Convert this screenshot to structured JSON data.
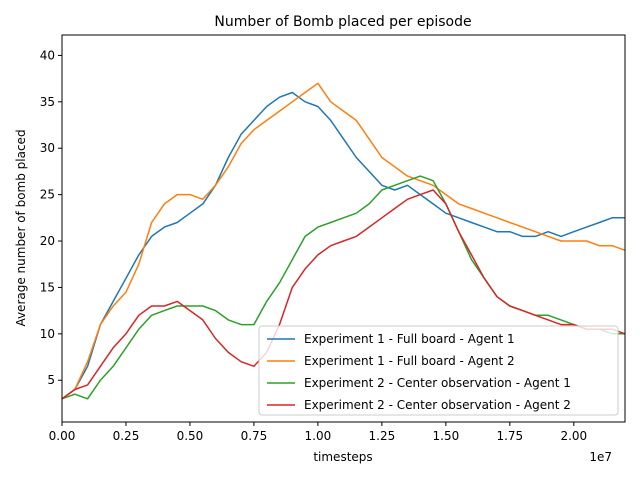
{
  "chart_data": {
    "type": "line",
    "title": "Number of Bomb placed per episode",
    "xlabel": "timesteps",
    "ylabel": "Average number of bomb placed",
    "x_offset_label": "1e7",
    "xlim": [
      0,
      2.2
    ],
    "ylim": [
      0.5,
      42.2
    ],
    "x_ticks": [
      0.0,
      0.25,
      0.5,
      0.75,
      1.0,
      1.25,
      1.5,
      1.75,
      2.0
    ],
    "x_tick_labels": [
      "0.00",
      "0.25",
      "0.50",
      "0.75",
      "1.00",
      "1.25",
      "1.50",
      "1.75",
      "2.00"
    ],
    "y_ticks": [
      5,
      10,
      15,
      20,
      25,
      30,
      35,
      40
    ],
    "y_tick_labels": [
      "5",
      "10",
      "15",
      "20",
      "25",
      "30",
      "35",
      "40"
    ],
    "grid": false,
    "legend_position": "lower-right",
    "series": [
      {
        "name": "Experiment 1 - Full board - Agent 1",
        "color": "#1f77b4",
        "x": [
          0.0,
          0.05,
          0.1,
          0.15,
          0.2,
          0.25,
          0.3,
          0.35,
          0.4,
          0.45,
          0.5,
          0.55,
          0.6,
          0.65,
          0.7,
          0.75,
          0.8,
          0.85,
          0.9,
          0.95,
          1.0,
          1.05,
          1.1,
          1.15,
          1.2,
          1.25,
          1.3,
          1.35,
          1.4,
          1.45,
          1.5,
          1.55,
          1.6,
          1.65,
          1.7,
          1.75,
          1.8,
          1.85,
          1.9,
          1.95,
          2.0,
          2.05,
          2.1,
          2.15,
          2.2
        ],
        "y": [
          3.0,
          4.0,
          6.5,
          11.0,
          13.5,
          16.0,
          18.5,
          20.5,
          21.5,
          22.0,
          23.0,
          24.0,
          26.0,
          29.0,
          31.5,
          33.0,
          34.5,
          35.5,
          36.0,
          35.0,
          34.5,
          33.0,
          31.0,
          29.0,
          27.5,
          26.0,
          25.5,
          26.0,
          25.0,
          24.0,
          23.0,
          22.5,
          22.0,
          21.5,
          21.0,
          21.0,
          20.5,
          20.5,
          21.0,
          20.5,
          21.0,
          21.5,
          22.0,
          22.5,
          22.5
        ]
      },
      {
        "name": "Experiment 1 - Full board - Agent 2",
        "color": "#ff7f0e",
        "x": [
          0.0,
          0.05,
          0.1,
          0.15,
          0.2,
          0.25,
          0.3,
          0.35,
          0.4,
          0.45,
          0.5,
          0.55,
          0.6,
          0.65,
          0.7,
          0.75,
          0.8,
          0.85,
          0.9,
          0.95,
          1.0,
          1.05,
          1.1,
          1.15,
          1.2,
          1.25,
          1.3,
          1.35,
          1.4,
          1.45,
          1.5,
          1.55,
          1.6,
          1.65,
          1.7,
          1.75,
          1.8,
          1.85,
          1.9,
          1.95,
          2.0,
          2.05,
          2.1,
          2.15,
          2.2
        ],
        "y": [
          3.0,
          4.0,
          7.0,
          11.0,
          13.0,
          14.5,
          17.5,
          22.0,
          24.0,
          25.0,
          25.0,
          24.5,
          26.0,
          28.0,
          30.5,
          32.0,
          33.0,
          34.0,
          35.0,
          36.0,
          37.0,
          35.0,
          34.0,
          33.0,
          31.0,
          29.0,
          28.0,
          27.0,
          26.5,
          26.0,
          25.0,
          24.0,
          23.5,
          23.0,
          22.5,
          22.0,
          21.5,
          21.0,
          20.5,
          20.0,
          20.0,
          20.0,
          19.5,
          19.5,
          19.0
        ]
      },
      {
        "name": "Experiment 2 - Center observation - Agent 1",
        "color": "#2ca02c",
        "x": [
          0.0,
          0.05,
          0.1,
          0.15,
          0.2,
          0.25,
          0.3,
          0.35,
          0.4,
          0.45,
          0.5,
          0.55,
          0.6,
          0.65,
          0.7,
          0.75,
          0.8,
          0.85,
          0.9,
          0.95,
          1.0,
          1.05,
          1.1,
          1.15,
          1.2,
          1.25,
          1.3,
          1.35,
          1.4,
          1.45,
          1.5,
          1.55,
          1.6,
          1.65,
          1.7,
          1.75,
          1.8,
          1.85,
          1.9,
          1.95,
          2.0,
          2.05,
          2.1,
          2.15,
          2.2
        ],
        "y": [
          3.0,
          3.5,
          3.0,
          5.0,
          6.5,
          8.5,
          10.5,
          12.0,
          12.5,
          13.0,
          13.0,
          13.0,
          12.5,
          11.5,
          11.0,
          11.0,
          13.5,
          15.5,
          18.0,
          20.5,
          21.5,
          22.0,
          22.5,
          23.0,
          24.0,
          25.5,
          26.0,
          26.5,
          27.0,
          26.5,
          24.0,
          21.0,
          18.0,
          16.0,
          14.0,
          13.0,
          12.5,
          12.0,
          12.0,
          11.5,
          11.0,
          10.5,
          10.5,
          10.0,
          10.0
        ]
      },
      {
        "name": "Experiment 2 - Center observation - Agent 2",
        "color": "#d62728",
        "x": [
          0.0,
          0.05,
          0.1,
          0.15,
          0.2,
          0.25,
          0.3,
          0.35,
          0.4,
          0.45,
          0.5,
          0.55,
          0.6,
          0.65,
          0.7,
          0.75,
          0.8,
          0.85,
          0.9,
          0.95,
          1.0,
          1.05,
          1.1,
          1.15,
          1.2,
          1.25,
          1.3,
          1.35,
          1.4,
          1.45,
          1.5,
          1.55,
          1.6,
          1.65,
          1.7,
          1.75,
          1.8,
          1.85,
          1.9,
          1.95,
          2.0,
          2.05,
          2.1,
          2.15,
          2.2
        ],
        "y": [
          3.0,
          4.0,
          4.5,
          6.5,
          8.5,
          10.0,
          12.0,
          13.0,
          13.0,
          13.5,
          12.5,
          11.5,
          9.5,
          8.0,
          7.0,
          6.5,
          8.0,
          11.0,
          15.0,
          17.0,
          18.5,
          19.5,
          20.0,
          20.5,
          21.5,
          22.5,
          23.5,
          24.5,
          25.0,
          25.5,
          24.0,
          21.0,
          18.5,
          16.0,
          14.0,
          13.0,
          12.5,
          12.0,
          11.5,
          11.0,
          11.0,
          10.5,
          10.5,
          10.5,
          10.0
        ]
      }
    ]
  }
}
